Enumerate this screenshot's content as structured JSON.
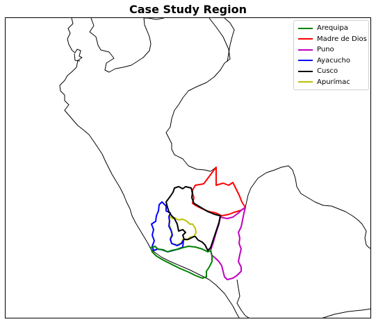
{
  "title": "Case Study Region",
  "legend": [
    {
      "label": "Arequipa",
      "color": "#008000"
    },
    {
      "label": "Madre de Dios",
      "color": "#ff0000"
    },
    {
      "label": "Puno",
      "color": "#bf00bf"
    },
    {
      "label": "Ayacucho",
      "color": "#0000ff"
    },
    {
      "label": "Cusco",
      "color": "#000000"
    },
    {
      "label": "Apurímac",
      "color": "#bfbf00"
    }
  ]
}
